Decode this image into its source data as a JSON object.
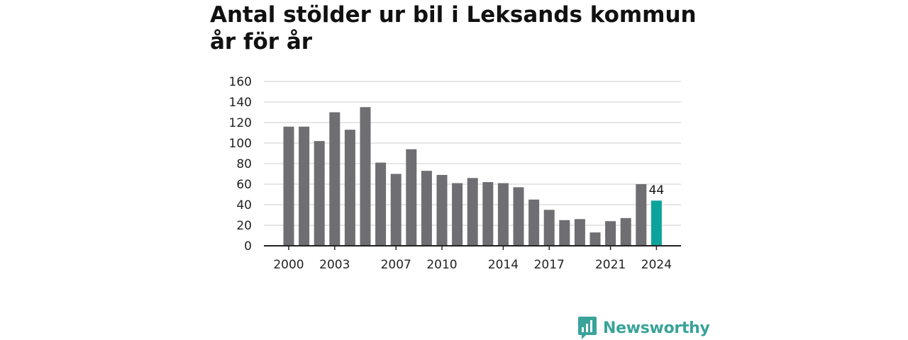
{
  "chart_data": {
    "type": "bar",
    "title": "Antal stölder ur bil i Leksands kommun år för år",
    "xlabel": "",
    "ylabel": "",
    "categories": [
      "2000",
      "2001",
      "2002",
      "2003",
      "2004",
      "2005",
      "2006",
      "2007",
      "2008",
      "2009",
      "2010",
      "2011",
      "2012",
      "2013",
      "2014",
      "2015",
      "2016",
      "2017",
      "2018",
      "2019",
      "2020",
      "2021",
      "2022",
      "2023",
      "2024"
    ],
    "values": [
      116,
      116,
      102,
      130,
      113,
      135,
      81,
      70,
      94,
      73,
      69,
      61,
      66,
      62,
      61,
      57,
      45,
      35,
      25,
      26,
      13,
      24,
      27,
      60,
      44
    ],
    "x_tick_labels": [
      "2000",
      "2003",
      "2007",
      "2010",
      "2014",
      "2017",
      "2021",
      "2024"
    ],
    "y_ticks": [
      0,
      20,
      40,
      60,
      80,
      100,
      120,
      140,
      160
    ],
    "ylim": [
      0,
      160
    ],
    "grid": true,
    "highlight": {
      "category": "2024",
      "value_label": "44",
      "color": "#0ba39b"
    },
    "bar_color": "#6e6e73"
  },
  "branding": {
    "logo_text": "Newsworthy",
    "logo_icon": "bar-chart-icon",
    "color": "#3aa39a"
  }
}
